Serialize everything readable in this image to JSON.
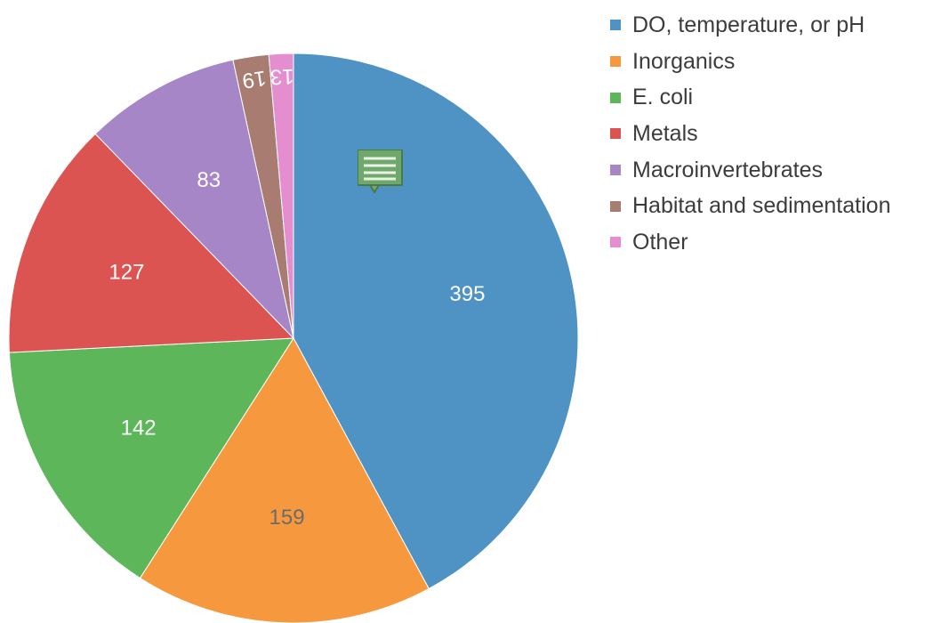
{
  "chart_data": {
    "type": "pie",
    "title": "",
    "categories": [
      "DO, temperature, or pH",
      "Inorganics",
      "E. coli",
      "Metals",
      "Macroinvertebrates",
      "Habitat and sedimentation",
      "Other"
    ],
    "values": [
      395,
      159,
      142,
      127,
      83,
      19,
      13
    ],
    "start_angle": "12 o'clock",
    "direction": "clockwise",
    "data_labels": [
      "395",
      "159",
      "142",
      "127",
      "83",
      "19",
      "13"
    ],
    "colors": [
      "#4e93c3",
      "#f6983d",
      "#5db65a",
      "#dc5452",
      "#a786c8",
      "#a97c72",
      "#e48ecf"
    ],
    "legend_position": "top-right"
  },
  "icons": {
    "comment": "comment-icon"
  }
}
